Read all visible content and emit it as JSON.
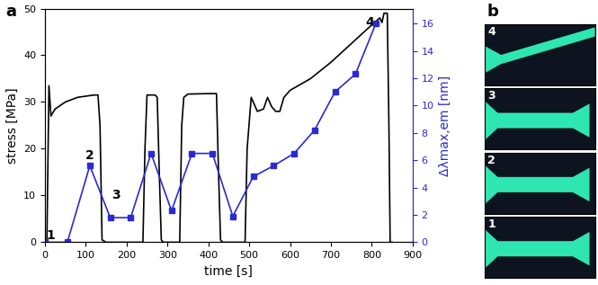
{
  "chart_data": {
    "type": "line",
    "panel_label": "a",
    "x_label": "time [s]",
    "y_label": "stress [MPa]",
    "y2_label": "Δλmax,em [nm]",
    "xlim": [
      0,
      900
    ],
    "xticks": [
      0,
      100,
      200,
      300,
      400,
      500,
      600,
      700,
      800,
      900
    ],
    "ylim": [
      0,
      50
    ],
    "yticks": [
      0,
      10,
      20,
      30,
      40,
      50
    ],
    "y2lim": [
      0,
      17.1
    ],
    "y2ticks": [
      0,
      2,
      4,
      6,
      8,
      10,
      12,
      14,
      16
    ],
    "series": [
      {
        "name": "stress",
        "color": "#000000",
        "type": "line",
        "x": [
          0,
          5,
          10,
          15,
          25,
          50,
          80,
          120,
          130,
          135,
          140,
          150,
          240,
          245,
          250,
          260,
          270,
          275,
          280,
          285,
          290,
          330,
          335,
          340,
          350,
          400,
          420,
          425,
          430,
          435,
          490,
          495,
          505,
          510,
          520,
          535,
          545,
          555,
          565,
          575,
          585,
          600,
          650,
          700,
          750,
          800,
          820,
          825,
          830,
          838,
          842,
          845,
          850
        ],
        "values": [
          0,
          0.3,
          33.5,
          27,
          28.5,
          30,
          31,
          31.5,
          31.5,
          25,
          0.5,
          0,
          0,
          20,
          31.5,
          31.5,
          31.5,
          31,
          15,
          0.5,
          0,
          0,
          25,
          31,
          31.7,
          31.8,
          31.8,
          15,
          0.5,
          0,
          0,
          20,
          31,
          30,
          28,
          28.5,
          31,
          29,
          28,
          28,
          31,
          32.5,
          35,
          38.5,
          42.5,
          46.5,
          48,
          47,
          49,
          49,
          25,
          0,
          0
        ]
      },
      {
        "name": "Δλmax,em",
        "color": "#2a2ad4",
        "type": "line",
        "marker": "square",
        "axis": "y2",
        "x": [
          0,
          55,
          110,
          160,
          210,
          260,
          310,
          360,
          410,
          460,
          510,
          560,
          610,
          660,
          710,
          760,
          810
        ],
        "values": [
          0,
          0,
          5.6,
          1.8,
          1.8,
          6.5,
          2.3,
          6.5,
          6.5,
          1.9,
          4.8,
          5.6,
          6.5,
          8.2,
          11.0,
          12.3,
          16.0
        ]
      }
    ],
    "annotations": [
      {
        "text": "1",
        "x": 15,
        "y": 1.5
      },
      {
        "text": "2",
        "x": 110,
        "y": 18.5
      },
      {
        "text": "3",
        "x": 175,
        "y": 10
      },
      {
        "text": "4",
        "x": 795,
        "y": 47
      }
    ]
  },
  "photos": {
    "panel_label": "b",
    "frames": [
      "4",
      "3",
      "2",
      "1"
    ]
  }
}
